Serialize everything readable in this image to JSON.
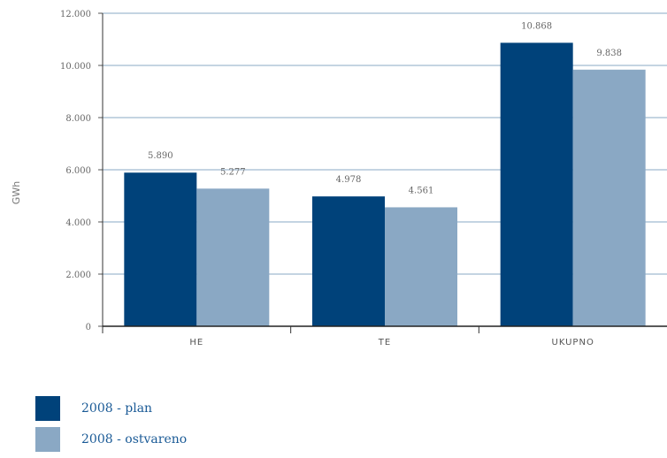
{
  "chart_data": {
    "type": "bar",
    "ylabel": "GWh",
    "categories": [
      "HE",
      "TE",
      "UKUPNO"
    ],
    "ylim": [
      0,
      12000
    ],
    "yticks": [
      0,
      2000,
      4000,
      6000,
      8000,
      10000,
      12000
    ],
    "ytick_labels": [
      "0",
      "2.000",
      "4.000",
      "6.000",
      "8.000",
      "10.000",
      "12.000"
    ],
    "grid": true,
    "legend_position": "bottom-left",
    "series": [
      {
        "name": "2008 - plan",
        "color": "#00427a",
        "values": [
          5890,
          4978,
          10868
        ],
        "data_labels": [
          "5.890",
          "4.978",
          "10.868"
        ]
      },
      {
        "name": "2008 - ostvareno",
        "color": "#8aa8c4",
        "values": [
          5277,
          4561,
          9838
        ],
        "data_labels": [
          "5.277",
          "4.561",
          "9.838"
        ]
      }
    ]
  }
}
